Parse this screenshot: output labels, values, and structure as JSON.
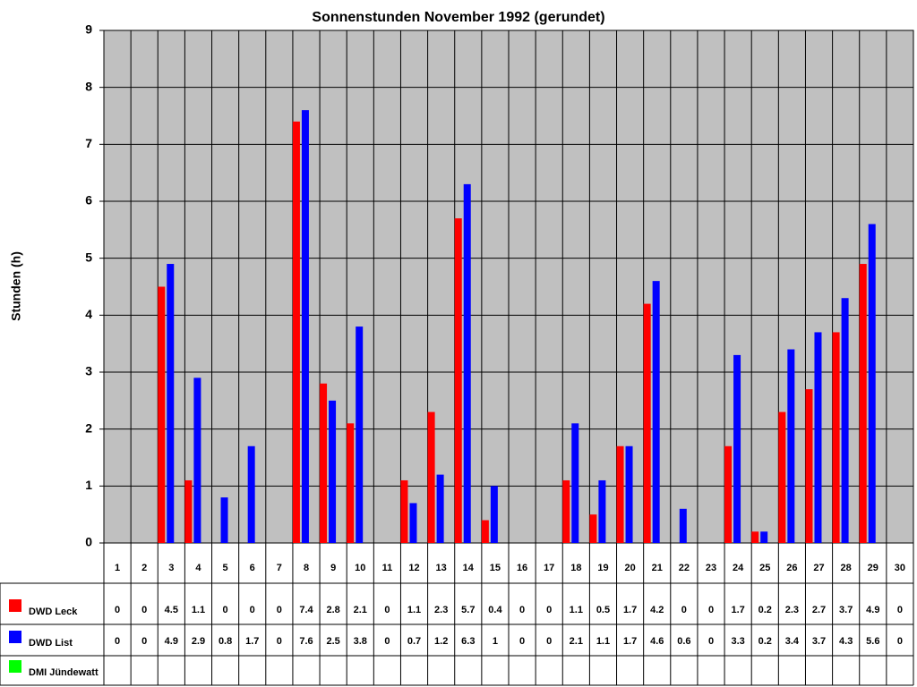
{
  "chart_data": {
    "type": "bar",
    "title": "Sonnenstunden November 1992 (gerundet)",
    "y_label": "Stunden (h)",
    "categories": [
      "1",
      "2",
      "3",
      "4",
      "5",
      "6",
      "7",
      "8",
      "9",
      "10",
      "11",
      "12",
      "13",
      "14",
      "15",
      "16",
      "17",
      "18",
      "19",
      "20",
      "21",
      "22",
      "23",
      "24",
      "25",
      "26",
      "27",
      "28",
      "29",
      "30"
    ],
    "series": [
      {
        "name": "DWD Leck",
        "color": "#ff0000",
        "values": [
          0,
          0,
          4.5,
          1.1,
          0,
          0,
          0,
          7.4,
          2.8,
          2.1,
          0,
          1.1,
          2.3,
          5.7,
          0.4,
          0,
          0,
          1.1,
          0.5,
          1.7,
          4.2,
          0,
          0,
          1.7,
          0.2,
          2.3,
          2.7,
          3.7,
          4.9,
          0
        ]
      },
      {
        "name": "DWD List",
        "color": "#0000ff",
        "values": [
          0,
          0,
          4.9,
          2.9,
          0.8,
          1.7,
          0,
          7.6,
          2.5,
          3.8,
          0,
          0.7,
          1.2,
          6.3,
          1,
          0,
          0,
          2.1,
          1.1,
          1.7,
          4.6,
          0.6,
          0,
          3.3,
          0.2,
          3.4,
          3.7,
          4.3,
          5.6,
          0
        ]
      },
      {
        "name": "DMI Jündewatt",
        "color": "#00ff00",
        "values": [
          null,
          null,
          null,
          null,
          null,
          null,
          null,
          null,
          null,
          null,
          null,
          null,
          null,
          null,
          null,
          null,
          null,
          null,
          null,
          null,
          null,
          null,
          null,
          null,
          null,
          null,
          null,
          null,
          null,
          null
        ]
      }
    ],
    "ylim": [
      0,
      9
    ],
    "yticks": [
      0,
      1,
      2,
      3,
      4,
      5,
      6,
      7,
      8,
      9
    ],
    "grid": true,
    "plot_background": "#c0c0c0"
  }
}
